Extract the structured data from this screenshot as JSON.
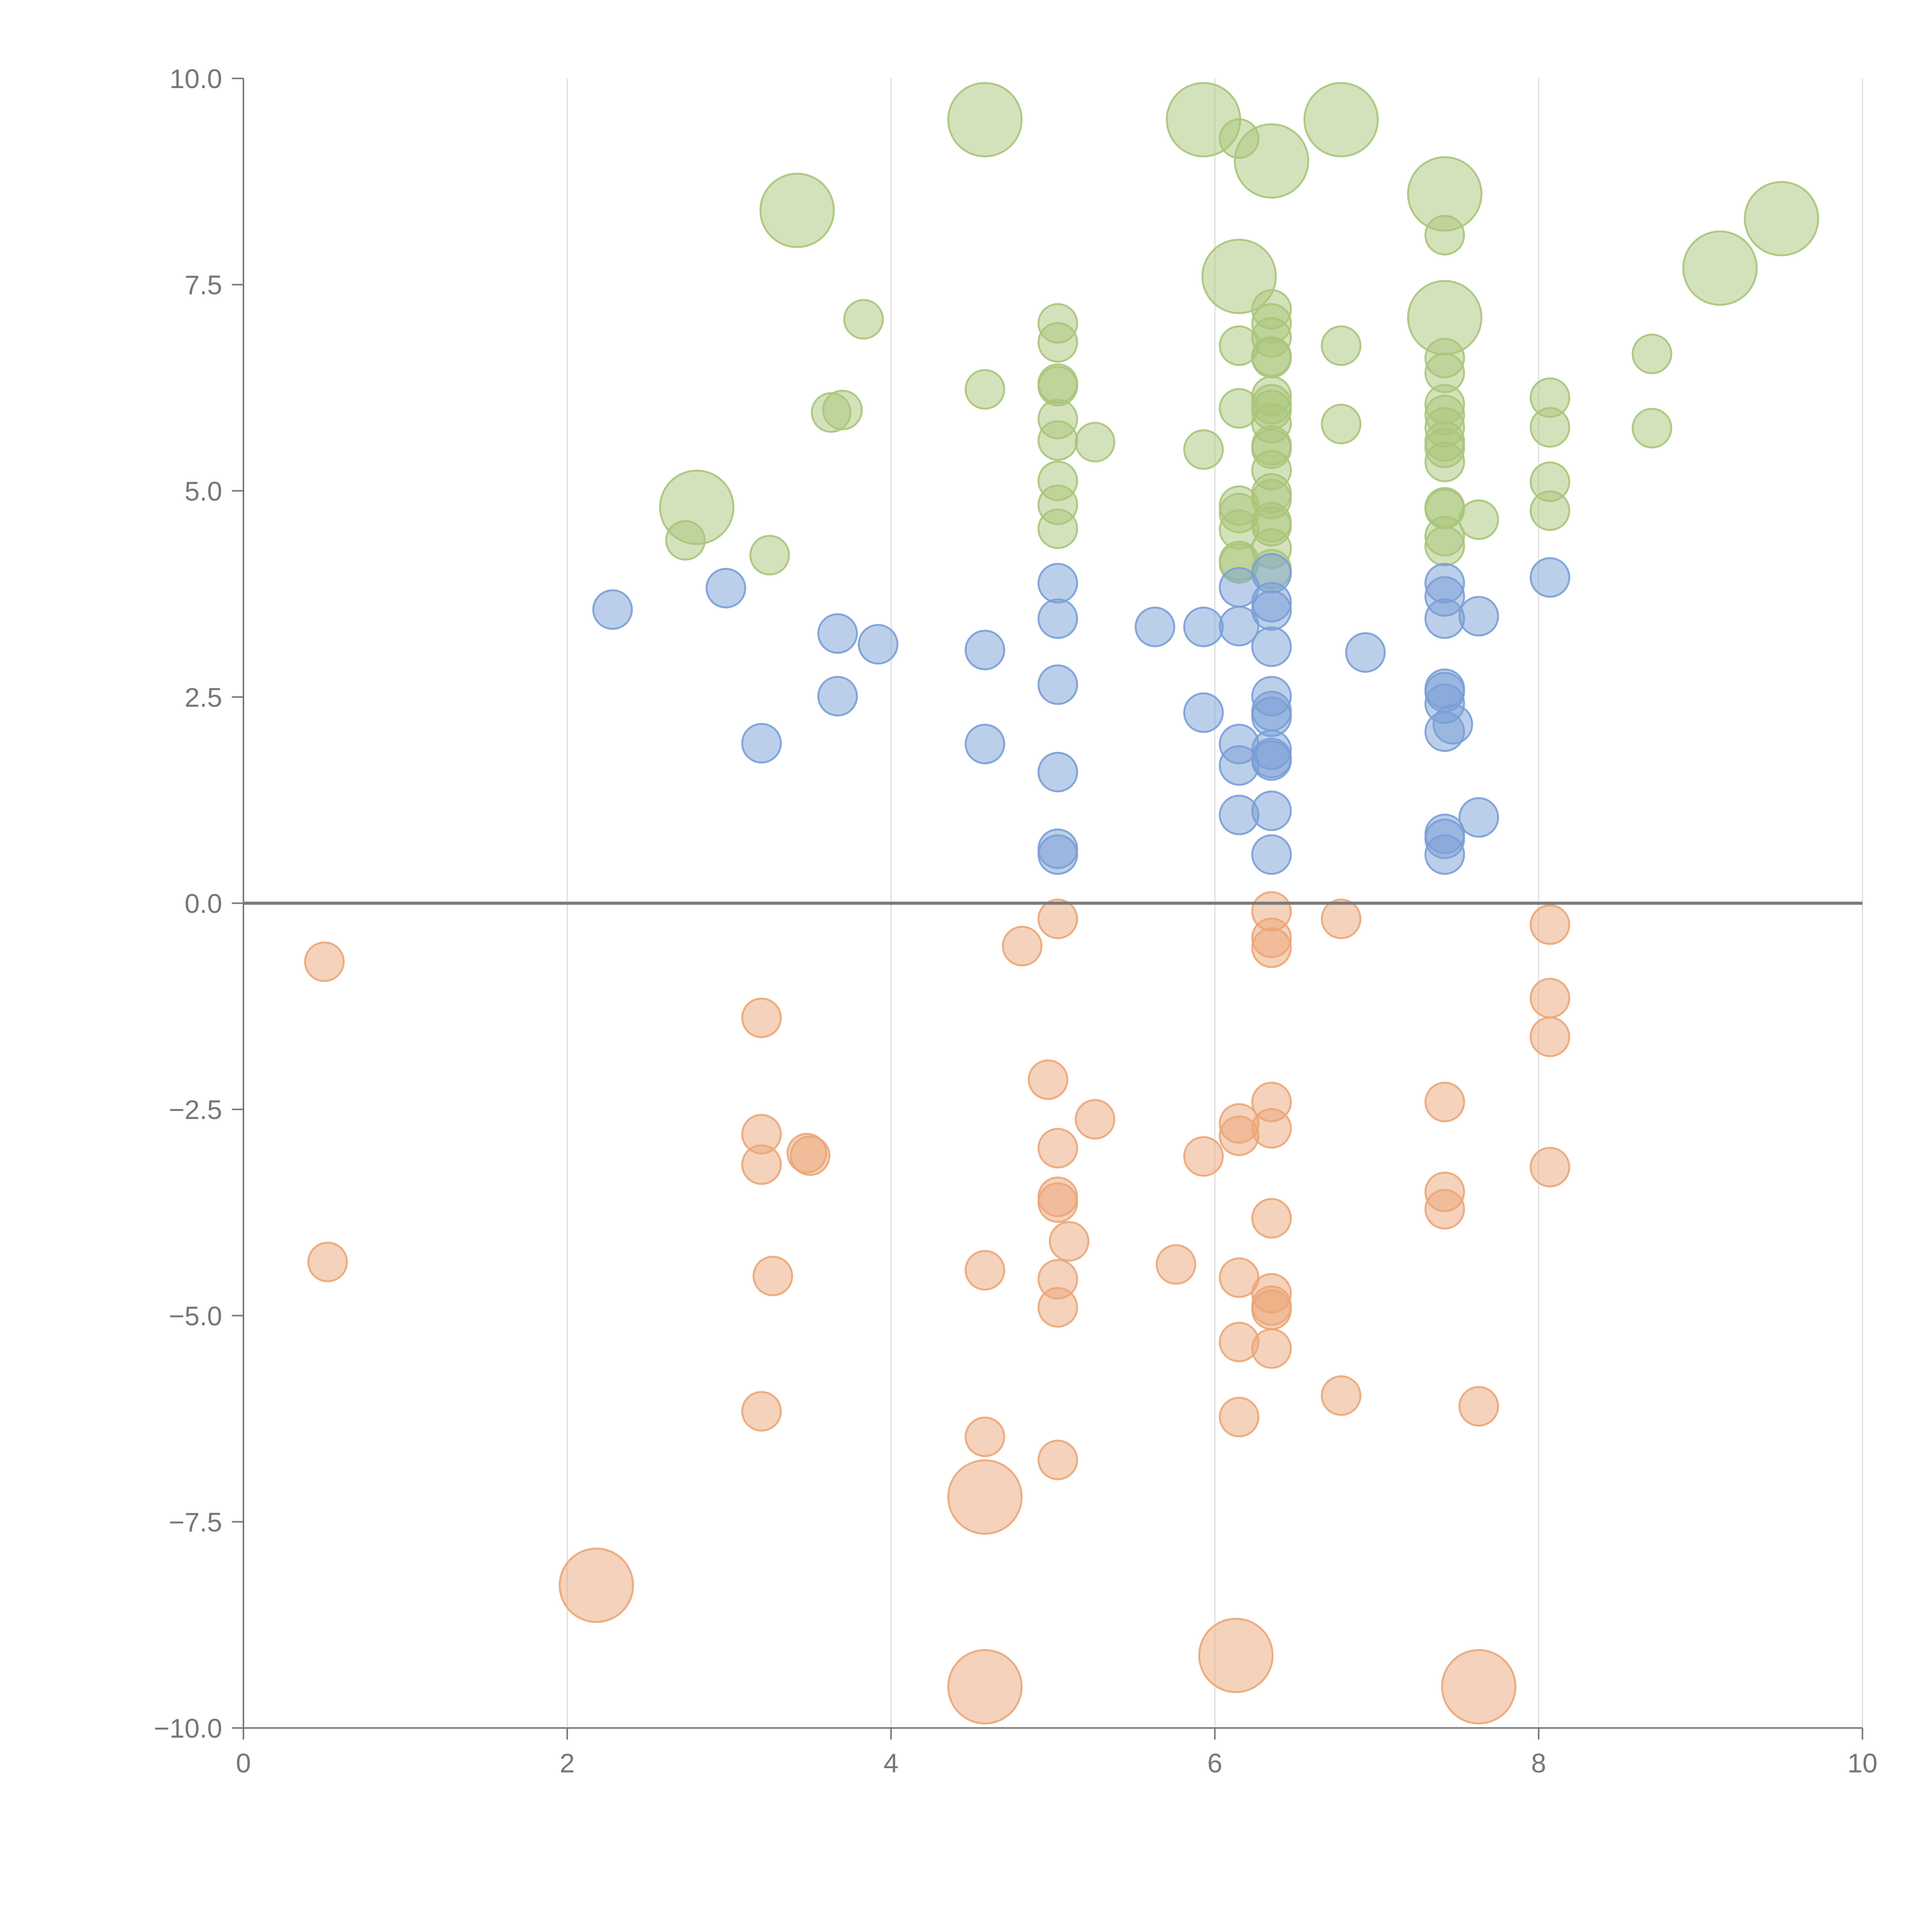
{
  "chart_data": {
    "type": "scatter",
    "title": "",
    "xlabel": "",
    "ylabel": "",
    "xlim": [
      0,
      10
    ],
    "ylim": [
      -10,
      10
    ],
    "x_ticks": [
      "0",
      "2",
      "4",
      "6",
      "8",
      "10"
    ],
    "y_ticks": [
      "10.0",
      "7.5",
      "5.0",
      "2.5",
      "0.0",
      "−2.5",
      "−5.0",
      "−7.5",
      "−10.0"
    ],
    "x_tick_values": [
      0,
      2,
      4,
      6,
      8,
      10
    ],
    "y_tick_values": [
      10,
      7.5,
      5,
      2.5,
      0,
      -2.5,
      -5,
      -7.5,
      -10
    ],
    "vertical_grid": true,
    "horizontal_grid": false,
    "zero_line": true,
    "legend": "none",
    "series": [
      {
        "color": "#a9c57a",
        "points": [
          {
            "x": 4.58,
            "y": 9.5,
            "size": "large"
          },
          {
            "x": 5.93,
            "y": 9.5,
            "size": "large"
          },
          {
            "x": 6.78,
            "y": 9.5,
            "size": "large"
          },
          {
            "x": 6.15,
            "y": 9.27,
            "size": "small"
          },
          {
            "x": 6.35,
            "y": 9.0,
            "size": "large"
          },
          {
            "x": 3.42,
            "y": 8.4,
            "size": "large"
          },
          {
            "x": 7.42,
            "y": 8.6,
            "size": "large"
          },
          {
            "x": 9.5,
            "y": 8.3,
            "size": "large"
          },
          {
            "x": 7.42,
            "y": 8.1,
            "size": "small"
          },
          {
            "x": 9.12,
            "y": 7.7,
            "size": "large"
          },
          {
            "x": 6.15,
            "y": 7.6,
            "size": "large"
          },
          {
            "x": 7.42,
            "y": 7.1,
            "size": "large"
          },
          {
            "x": 3.83,
            "y": 7.08,
            "size": "small"
          },
          {
            "x": 5.03,
            "y": 7.03,
            "size": "small"
          },
          {
            "x": 6.35,
            "y": 7.2,
            "size": "small"
          },
          {
            "x": 6.35,
            "y": 7.03,
            "size": "small"
          },
          {
            "x": 6.35,
            "y": 6.86,
            "size": "small"
          },
          {
            "x": 6.15,
            "y": 6.76,
            "size": "small"
          },
          {
            "x": 5.03,
            "y": 6.8,
            "size": "small"
          },
          {
            "x": 6.78,
            "y": 6.76,
            "size": "small"
          },
          {
            "x": 8.7,
            "y": 6.66,
            "size": "small"
          },
          {
            "x": 7.42,
            "y": 6.61,
            "size": "small"
          },
          {
            "x": 6.35,
            "y": 6.63,
            "size": "small"
          },
          {
            "x": 6.35,
            "y": 6.61,
            "size": "small"
          },
          {
            "x": 7.42,
            "y": 6.43,
            "size": "small"
          },
          {
            "x": 5.03,
            "y": 6.3,
            "size": "small"
          },
          {
            "x": 5.03,
            "y": 6.27,
            "size": "small"
          },
          {
            "x": 4.58,
            "y": 6.23,
            "size": "small"
          },
          {
            "x": 6.35,
            "y": 6.15,
            "size": "small"
          },
          {
            "x": 8.07,
            "y": 6.13,
            "size": "small"
          },
          {
            "x": 6.15,
            "y": 6.0,
            "size": "small"
          },
          {
            "x": 6.35,
            "y": 6.05,
            "size": "small"
          },
          {
            "x": 6.35,
            "y": 5.98,
            "size": "small"
          },
          {
            "x": 7.42,
            "y": 6.05,
            "size": "small"
          },
          {
            "x": 7.42,
            "y": 5.92,
            "size": "small"
          },
          {
            "x": 3.63,
            "y": 5.95,
            "size": "small"
          },
          {
            "x": 3.7,
            "y": 5.98,
            "size": "small"
          },
          {
            "x": 5.03,
            "y": 5.87,
            "size": "small"
          },
          {
            "x": 6.35,
            "y": 5.82,
            "size": "small"
          },
          {
            "x": 6.78,
            "y": 5.81,
            "size": "small"
          },
          {
            "x": 7.42,
            "y": 5.77,
            "size": "small"
          },
          {
            "x": 8.07,
            "y": 5.77,
            "size": "small"
          },
          {
            "x": 8.7,
            "y": 5.76,
            "size": "small"
          },
          {
            "x": 5.03,
            "y": 5.61,
            "size": "small"
          },
          {
            "x": 5.26,
            "y": 5.59,
            "size": "small"
          },
          {
            "x": 7.42,
            "y": 5.6,
            "size": "small"
          },
          {
            "x": 6.35,
            "y": 5.55,
            "size": "small"
          },
          {
            "x": 6.35,
            "y": 5.51,
            "size": "small"
          },
          {
            "x": 5.93,
            "y": 5.5,
            "size": "small"
          },
          {
            "x": 7.42,
            "y": 5.52,
            "size": "small"
          },
          {
            "x": 7.42,
            "y": 5.35,
            "size": "small"
          },
          {
            "x": 6.35,
            "y": 5.25,
            "size": "small"
          },
          {
            "x": 5.03,
            "y": 5.12,
            "size": "small"
          },
          {
            "x": 8.07,
            "y": 5.11,
            "size": "small"
          },
          {
            "x": 6.35,
            "y": 4.97,
            "size": "small"
          },
          {
            "x": 6.35,
            "y": 4.9,
            "size": "small"
          },
          {
            "x": 2.8,
            "y": 4.8,
            "size": "large"
          },
          {
            "x": 5.03,
            "y": 4.83,
            "size": "small"
          },
          {
            "x": 6.15,
            "y": 4.82,
            "size": "small"
          },
          {
            "x": 7.42,
            "y": 4.8,
            "size": "small"
          },
          {
            "x": 7.42,
            "y": 4.78,
            "size": "small"
          },
          {
            "x": 8.07,
            "y": 4.76,
            "size": "small"
          },
          {
            "x": 6.15,
            "y": 4.73,
            "size": "small"
          },
          {
            "x": 7.63,
            "y": 4.65,
            "size": "small"
          },
          {
            "x": 6.35,
            "y": 4.62,
            "size": "small"
          },
          {
            "x": 6.35,
            "y": 4.57,
            "size": "small"
          },
          {
            "x": 5.03,
            "y": 4.54,
            "size": "small"
          },
          {
            "x": 6.15,
            "y": 4.53,
            "size": "small"
          },
          {
            "x": 7.42,
            "y": 4.45,
            "size": "small"
          },
          {
            "x": 2.73,
            "y": 4.4,
            "size": "small"
          },
          {
            "x": 7.42,
            "y": 4.33,
            "size": "small"
          },
          {
            "x": 6.35,
            "y": 4.3,
            "size": "small"
          },
          {
            "x": 3.25,
            "y": 4.22,
            "size": "small"
          },
          {
            "x": 6.15,
            "y": 4.15,
            "size": "small"
          },
          {
            "x": 6.15,
            "y": 4.12,
            "size": "small"
          },
          {
            "x": 6.35,
            "y": 4.05,
            "size": "small"
          }
        ]
      },
      {
        "color": "#7a9fd6",
        "points": [
          {
            "x": 6.35,
            "y": 4.0,
            "size": "small"
          },
          {
            "x": 8.07,
            "y": 3.95,
            "size": "small"
          },
          {
            "x": 5.03,
            "y": 3.88,
            "size": "small"
          },
          {
            "x": 7.42,
            "y": 3.88,
            "size": "small"
          },
          {
            "x": 2.98,
            "y": 3.82,
            "size": "small"
          },
          {
            "x": 6.15,
            "y": 3.83,
            "size": "small"
          },
          {
            "x": 7.42,
            "y": 3.72,
            "size": "small"
          },
          {
            "x": 6.35,
            "y": 3.65,
            "size": "small"
          },
          {
            "x": 2.28,
            "y": 3.56,
            "size": "small"
          },
          {
            "x": 6.35,
            "y": 3.55,
            "size": "small"
          },
          {
            "x": 7.63,
            "y": 3.48,
            "size": "small"
          },
          {
            "x": 5.03,
            "y": 3.45,
            "size": "small"
          },
          {
            "x": 7.42,
            "y": 3.45,
            "size": "small"
          },
          {
            "x": 5.63,
            "y": 3.35,
            "size": "small"
          },
          {
            "x": 5.93,
            "y": 3.35,
            "size": "small"
          },
          {
            "x": 6.15,
            "y": 3.36,
            "size": "small"
          },
          {
            "x": 3.67,
            "y": 3.27,
            "size": "small"
          },
          {
            "x": 3.92,
            "y": 3.14,
            "size": "small"
          },
          {
            "x": 6.35,
            "y": 3.11,
            "size": "small"
          },
          {
            "x": 4.58,
            "y": 3.07,
            "size": "small"
          },
          {
            "x": 6.93,
            "y": 3.04,
            "size": "small"
          },
          {
            "x": 5.03,
            "y": 2.65,
            "size": "small"
          },
          {
            "x": 7.42,
            "y": 2.6,
            "size": "small"
          },
          {
            "x": 7.42,
            "y": 2.56,
            "size": "small"
          },
          {
            "x": 3.67,
            "y": 2.51,
            "size": "small"
          },
          {
            "x": 6.35,
            "y": 2.51,
            "size": "small"
          },
          {
            "x": 7.42,
            "y": 2.42,
            "size": "small"
          },
          {
            "x": 6.35,
            "y": 2.33,
            "size": "small"
          },
          {
            "x": 5.93,
            "y": 2.31,
            "size": "small"
          },
          {
            "x": 6.35,
            "y": 2.26,
            "size": "small"
          },
          {
            "x": 7.47,
            "y": 2.17,
            "size": "small"
          },
          {
            "x": 7.42,
            "y": 2.08,
            "size": "small"
          },
          {
            "x": 3.2,
            "y": 1.94,
            "size": "small"
          },
          {
            "x": 4.58,
            "y": 1.93,
            "size": "small"
          },
          {
            "x": 6.15,
            "y": 1.93,
            "size": "small"
          },
          {
            "x": 6.35,
            "y": 1.86,
            "size": "small"
          },
          {
            "x": 6.35,
            "y": 1.76,
            "size": "small"
          },
          {
            "x": 6.35,
            "y": 1.73,
            "size": "small"
          },
          {
            "x": 6.15,
            "y": 1.67,
            "size": "small"
          },
          {
            "x": 5.03,
            "y": 1.59,
            "size": "small"
          },
          {
            "x": 6.35,
            "y": 1.12,
            "size": "small"
          },
          {
            "x": 6.15,
            "y": 1.07,
            "size": "small"
          },
          {
            "x": 7.63,
            "y": 1.04,
            "size": "small"
          },
          {
            "x": 7.42,
            "y": 0.84,
            "size": "small"
          },
          {
            "x": 7.42,
            "y": 0.78,
            "size": "small"
          },
          {
            "x": 5.03,
            "y": 0.66,
            "size": "small"
          },
          {
            "x": 5.03,
            "y": 0.59,
            "size": "small"
          },
          {
            "x": 6.35,
            "y": 0.59,
            "size": "small"
          },
          {
            "x": 7.42,
            "y": 0.59,
            "size": "small"
          }
        ]
      },
      {
        "color": "#eba678",
        "points": [
          {
            "x": 6.35,
            "y": -0.1,
            "size": "small"
          },
          {
            "x": 5.03,
            "y": -0.19,
            "size": "small"
          },
          {
            "x": 6.78,
            "y": -0.19,
            "size": "small"
          },
          {
            "x": 8.07,
            "y": -0.26,
            "size": "small"
          },
          {
            "x": 6.35,
            "y": -0.42,
            "size": "small"
          },
          {
            "x": 4.81,
            "y": -0.52,
            "size": "small"
          },
          {
            "x": 6.35,
            "y": -0.54,
            "size": "small"
          },
          {
            "x": 0.5,
            "y": -0.71,
            "size": "small"
          },
          {
            "x": 8.07,
            "y": -1.15,
            "size": "small"
          },
          {
            "x": 3.2,
            "y": -1.39,
            "size": "small"
          },
          {
            "x": 8.07,
            "y": -1.62,
            "size": "small"
          },
          {
            "x": 4.97,
            "y": -2.14,
            "size": "small"
          },
          {
            "x": 6.35,
            "y": -2.41,
            "size": "small"
          },
          {
            "x": 7.42,
            "y": -2.41,
            "size": "small"
          },
          {
            "x": 5.26,
            "y": -2.62,
            "size": "small"
          },
          {
            "x": 6.15,
            "y": -2.67,
            "size": "small"
          },
          {
            "x": 6.35,
            "y": -2.73,
            "size": "small"
          },
          {
            "x": 3.2,
            "y": -2.8,
            "size": "small"
          },
          {
            "x": 6.15,
            "y": -2.82,
            "size": "small"
          },
          {
            "x": 5.03,
            "y": -2.97,
            "size": "small"
          },
          {
            "x": 3.48,
            "y": -3.03,
            "size": "small"
          },
          {
            "x": 3.5,
            "y": -3.06,
            "size": "small"
          },
          {
            "x": 5.93,
            "y": -3.07,
            "size": "small"
          },
          {
            "x": 3.2,
            "y": -3.17,
            "size": "small"
          },
          {
            "x": 8.07,
            "y": -3.2,
            "size": "small"
          },
          {
            "x": 7.42,
            "y": -3.5,
            "size": "small"
          },
          {
            "x": 5.03,
            "y": -3.56,
            "size": "small"
          },
          {
            "x": 5.03,
            "y": -3.63,
            "size": "small"
          },
          {
            "x": 7.42,
            "y": -3.71,
            "size": "small"
          },
          {
            "x": 6.35,
            "y": -3.82,
            "size": "small"
          },
          {
            "x": 5.1,
            "y": -4.1,
            "size": "small"
          },
          {
            "x": 0.52,
            "y": -4.35,
            "size": "small"
          },
          {
            "x": 5.76,
            "y": -4.38,
            "size": "small"
          },
          {
            "x": 4.58,
            "y": -4.45,
            "size": "small"
          },
          {
            "x": 3.27,
            "y": -4.52,
            "size": "small"
          },
          {
            "x": 6.15,
            "y": -4.54,
            "size": "small"
          },
          {
            "x": 5.03,
            "y": -4.56,
            "size": "small"
          },
          {
            "x": 6.35,
            "y": -4.73,
            "size": "small"
          },
          {
            "x": 6.35,
            "y": -4.88,
            "size": "small"
          },
          {
            "x": 6.35,
            "y": -4.93,
            "size": "small"
          },
          {
            "x": 5.03,
            "y": -4.9,
            "size": "small"
          },
          {
            "x": 6.15,
            "y": -5.32,
            "size": "small"
          },
          {
            "x": 6.35,
            "y": -5.4,
            "size": "small"
          },
          {
            "x": 6.78,
            "y": -5.97,
            "size": "small"
          },
          {
            "x": 7.63,
            "y": -6.1,
            "size": "small"
          },
          {
            "x": 3.2,
            "y": -6.16,
            "size": "small"
          },
          {
            "x": 6.15,
            "y": -6.23,
            "size": "small"
          },
          {
            "x": 4.58,
            "y": -6.47,
            "size": "small"
          },
          {
            "x": 5.03,
            "y": -6.75,
            "size": "small"
          },
          {
            "x": 4.58,
            "y": -7.2,
            "size": "large"
          },
          {
            "x": 2.18,
            "y": -8.27,
            "size": "large"
          },
          {
            "x": 6.13,
            "y": -9.12,
            "size": "large"
          },
          {
            "x": 4.58,
            "y": -9.5,
            "size": "large"
          },
          {
            "x": 7.63,
            "y": -9.5,
            "size": "large"
          }
        ]
      }
    ]
  }
}
